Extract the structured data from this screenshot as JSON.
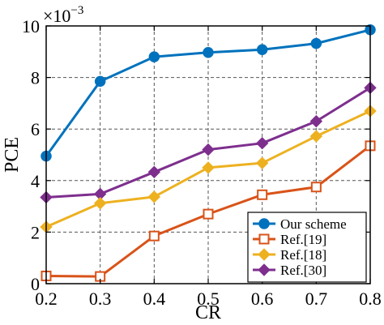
{
  "chart_data": {
    "type": "line",
    "title": "",
    "xlabel": "CR",
    "ylabel": "PCE",
    "y_multiplier_label": "×10",
    "y_multiplier_exponent": "−3",
    "x": [
      0.2,
      0.3,
      0.4,
      0.5,
      0.6,
      0.7,
      0.8
    ],
    "xlim": [
      0.2,
      0.8
    ],
    "ylim": [
      0,
      10
    ],
    "x_ticks": [
      "0.2",
      "0.3",
      "0.4",
      "0.5",
      "0.6",
      "0.7",
      "0.8"
    ],
    "y_ticks": [
      "0",
      "2",
      "4",
      "6",
      "8",
      "10"
    ],
    "grid": true,
    "legend_position": "bottom-right",
    "series": [
      {
        "name": "Our scheme",
        "color": "#0072BD",
        "marker": "circle",
        "filled": true,
        "values": [
          4.95,
          7.85,
          8.8,
          8.97,
          9.08,
          9.32,
          9.85
        ]
      },
      {
        "name": "Ref.[19]",
        "color": "#D95319",
        "marker": "square",
        "filled": false,
        "values": [
          0.3,
          0.28,
          1.85,
          2.7,
          3.45,
          3.75,
          5.35
        ]
      },
      {
        "name": "Ref.[18]",
        "color": "#EDB120",
        "marker": "diamond",
        "filled": true,
        "values": [
          2.2,
          3.12,
          3.37,
          4.5,
          4.68,
          5.72,
          6.7
        ]
      },
      {
        "name": "Ref.[30]",
        "color": "#7E2F8E",
        "marker": "diamond",
        "filled": true,
        "values": [
          3.35,
          3.48,
          4.33,
          5.2,
          5.45,
          6.3,
          7.6
        ]
      }
    ]
  }
}
